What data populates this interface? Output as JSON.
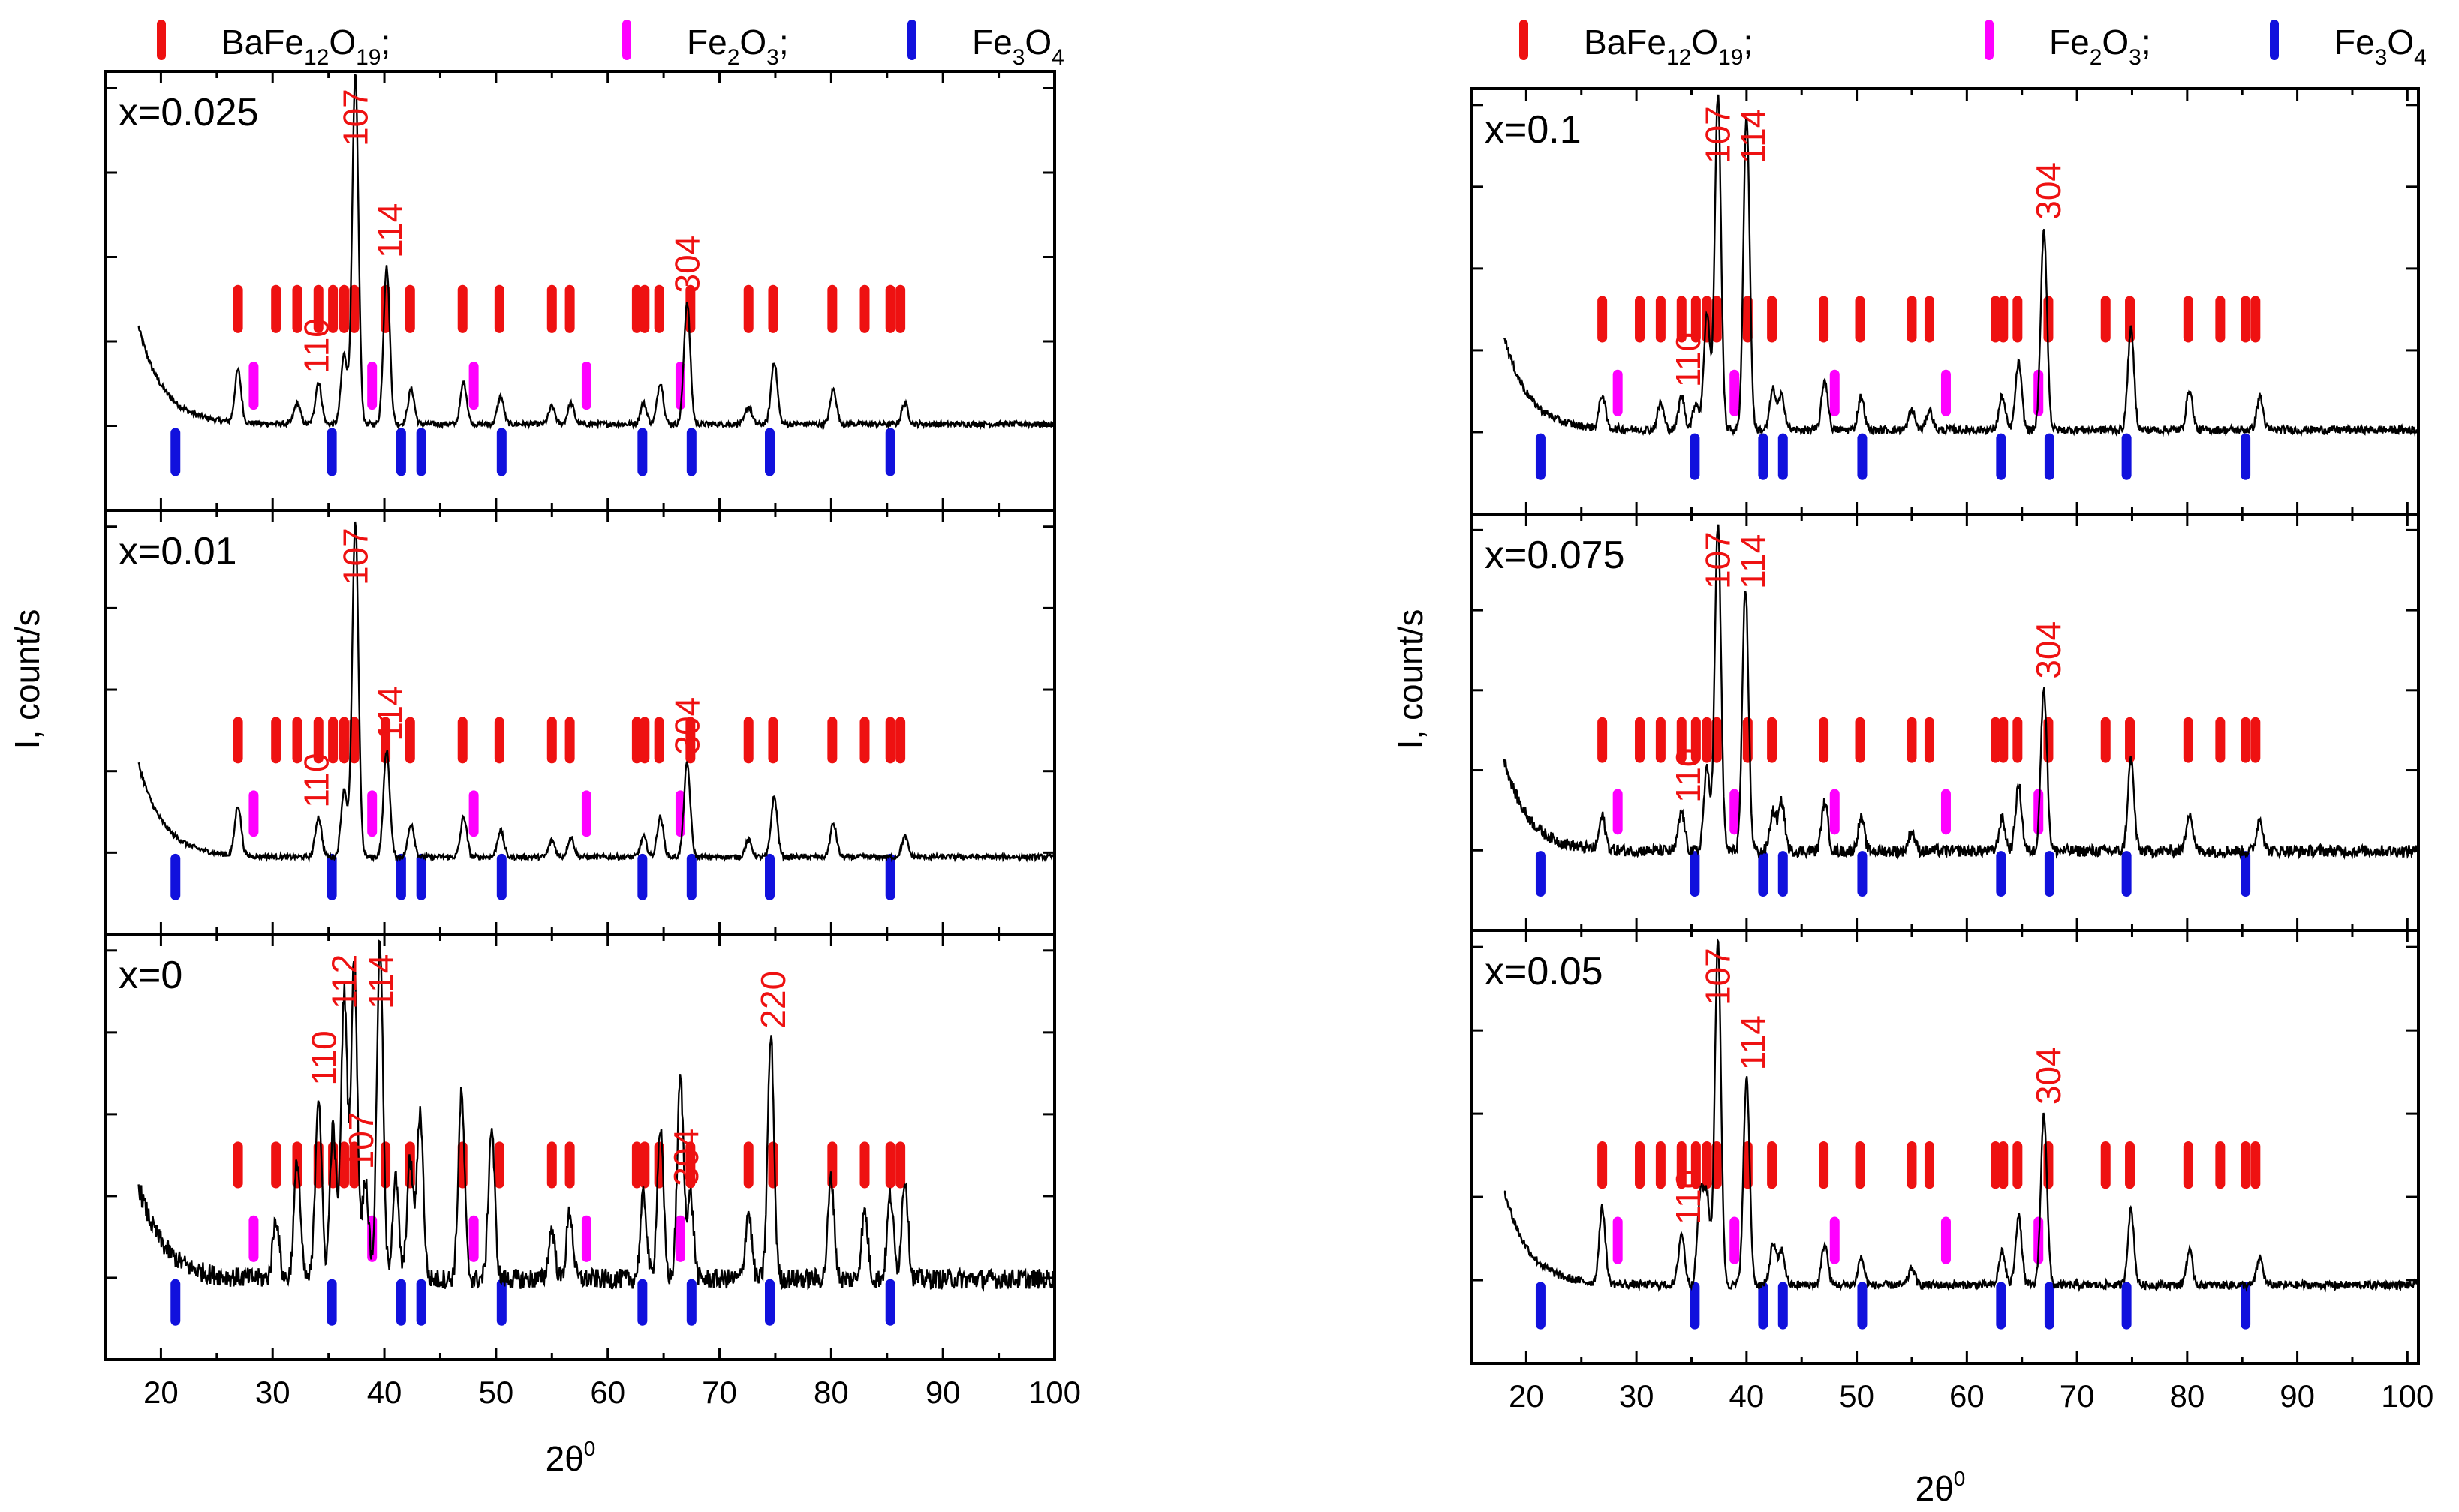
{
  "colors": {
    "bafe": "#ee1111",
    "fe2o3": "#ff00ff",
    "fe3o4": "#1111dd",
    "trace": "#000000",
    "axis": "#000000"
  },
  "legend": [
    {
      "key": "bafe",
      "label_base": "BaFe",
      "sub1": "12",
      "mid": "O",
      "sub2": "19",
      "suffix": ";"
    },
    {
      "key": "fe2o3",
      "label_base": "Fe",
      "sub1": "2",
      "mid": "O",
      "sub2": "3",
      "suffix": ";"
    },
    {
      "key": "fe3o4",
      "label_base": "Fe",
      "sub1": "3",
      "mid": "O",
      "sub2": "4",
      "suffix": ""
    }
  ],
  "axes": {
    "ylabel": "I, count/s",
    "xlabel_base": "2θ",
    "xlabel_sup": "0",
    "xlim": [
      15,
      100
    ],
    "xlim_right": [
      15,
      101
    ],
    "xticks": [
      20,
      30,
      40,
      50,
      60,
      70,
      80,
      90,
      100
    ]
  },
  "chart_data": {
    "type": "line",
    "description": "X-ray diffraction patterns, intensity vs 2θ, with reference line markers",
    "reference_positions": {
      "BaFe12O19": [
        26.9,
        30.3,
        32.2,
        34.1,
        35.4,
        36.4,
        37.3,
        40.1,
        42.3,
        47.0,
        50.3,
        55.0,
        56.6,
        62.6,
        63.3,
        64.6,
        67.4,
        72.6,
        74.8,
        80.1,
        83.0,
        85.3,
        86.2
      ],
      "Fe2O3": [
        28.3,
        38.9,
        48.0,
        58.1,
        66.5
      ],
      "Fe3O4": [
        21.3,
        35.3,
        41.5,
        43.3,
        50.5,
        63.1,
        67.5,
        74.5,
        85.3
      ]
    },
    "panels": [
      {
        "sample": "x=0.025",
        "column": "left",
        "baseline": 0.15,
        "noise": 0.008,
        "peaks": [
          [
            26.9,
            0.15
          ],
          [
            32.2,
            0.06
          ],
          [
            34.1,
            0.12
          ],
          [
            36.4,
            0.2
          ],
          [
            37.4,
            1.0
          ],
          [
            40.2,
            0.45
          ],
          [
            42.4,
            0.1
          ],
          [
            47.1,
            0.12
          ],
          [
            50.4,
            0.08
          ],
          [
            55.0,
            0.05
          ],
          [
            56.7,
            0.06
          ],
          [
            63.2,
            0.06
          ],
          [
            64.7,
            0.12
          ],
          [
            67.1,
            0.35
          ],
          [
            72.6,
            0.05
          ],
          [
            74.9,
            0.18
          ],
          [
            80.2,
            0.1
          ],
          [
            86.6,
            0.06
          ]
        ],
        "miller": [
          {
            "hkl": "110",
            "at": 33.9
          },
          {
            "hkl": "107",
            "at": 37.4
          },
          {
            "hkl": "114",
            "at": 40.5
          },
          {
            "hkl": "304",
            "at": 67.1
          }
        ]
      },
      {
        "sample": "x=0.01",
        "column": "left",
        "baseline": 0.13,
        "noise": 0.008,
        "peaks": [
          [
            26.9,
            0.15
          ],
          [
            34.1,
            0.12
          ],
          [
            36.4,
            0.2
          ],
          [
            37.4,
            1.0
          ],
          [
            40.2,
            0.32
          ],
          [
            42.4,
            0.1
          ],
          [
            47.1,
            0.12
          ],
          [
            50.4,
            0.08
          ],
          [
            55.0,
            0.05
          ],
          [
            56.7,
            0.06
          ],
          [
            63.2,
            0.06
          ],
          [
            64.7,
            0.12
          ],
          [
            67.1,
            0.28
          ],
          [
            72.6,
            0.05
          ],
          [
            74.9,
            0.18
          ],
          [
            80.2,
            0.1
          ],
          [
            86.6,
            0.06
          ]
        ],
        "miller": [
          {
            "hkl": "110",
            "at": 33.9
          },
          {
            "hkl": "107",
            "at": 37.4
          },
          {
            "hkl": "114",
            "at": 40.5
          },
          {
            "hkl": "304",
            "at": 67.1
          }
        ]
      },
      {
        "sample": "x=0",
        "column": "left",
        "baseline": 0.14,
        "noise": 0.03,
        "peaks": [
          [
            30.3,
            0.18
          ],
          [
            32.2,
            0.35
          ],
          [
            34.1,
            0.55
          ],
          [
            35.4,
            0.45
          ],
          [
            36.4,
            0.85
          ],
          [
            37.3,
            0.95
          ],
          [
            38.3,
            0.3
          ],
          [
            39.6,
            1.0
          ],
          [
            41.0,
            0.3
          ],
          [
            42.3,
            0.35
          ],
          [
            43.2,
            0.5
          ],
          [
            46.9,
            0.55
          ],
          [
            49.6,
            0.45
          ],
          [
            55.0,
            0.15
          ],
          [
            56.6,
            0.2
          ],
          [
            63.2,
            0.25
          ],
          [
            64.7,
            0.45
          ],
          [
            66.5,
            0.6
          ],
          [
            67.4,
            0.25
          ],
          [
            72.6,
            0.2
          ],
          [
            74.6,
            0.72
          ],
          [
            80.0,
            0.3
          ],
          [
            83.0,
            0.2
          ],
          [
            85.3,
            0.25
          ],
          [
            86.6,
            0.3
          ]
        ],
        "miller": [
          {
            "hkl": "110",
            "at": 34.6
          },
          {
            "hkl": "112",
            "at": 36.4
          },
          {
            "hkl": "107",
            "at": 37.9
          },
          {
            "hkl": "114",
            "at": 39.7
          },
          {
            "hkl": "304",
            "at": 67.0
          },
          {
            "hkl": "220",
            "at": 74.8
          }
        ]
      },
      {
        "sample": "x=0.1",
        "column": "right",
        "baseline": 0.15,
        "noise": 0.012,
        "peaks": [
          [
            26.9,
            0.1
          ],
          [
            32.2,
            0.08
          ],
          [
            34.1,
            0.1
          ],
          [
            35.4,
            0.08
          ],
          [
            36.4,
            0.35
          ],
          [
            37.4,
            1.0
          ],
          [
            40.0,
            0.94
          ],
          [
            42.4,
            0.12
          ],
          [
            43.2,
            0.1
          ],
          [
            47.1,
            0.15
          ],
          [
            50.4,
            0.1
          ],
          [
            55.0,
            0.06
          ],
          [
            56.6,
            0.06
          ],
          [
            63.2,
            0.1
          ],
          [
            64.7,
            0.2
          ],
          [
            67.0,
            0.6
          ],
          [
            74.9,
            0.3
          ],
          [
            80.2,
            0.12
          ],
          [
            86.6,
            0.1
          ]
        ],
        "miller": [
          {
            "hkl": "110",
            "at": 34.7
          },
          {
            "hkl": "107",
            "at": 37.4
          },
          {
            "hkl": "114",
            "at": 40.6
          },
          {
            "hkl": "304",
            "at": 67.4
          }
        ]
      },
      {
        "sample": "x=0.075",
        "column": "right",
        "baseline": 0.14,
        "noise": 0.018,
        "peaks": [
          [
            26.9,
            0.1
          ],
          [
            34.1,
            0.12
          ],
          [
            36.4,
            0.25
          ],
          [
            37.4,
            1.0
          ],
          [
            39.9,
            0.8
          ],
          [
            42.4,
            0.12
          ],
          [
            43.2,
            0.15
          ],
          [
            47.1,
            0.15
          ],
          [
            50.4,
            0.1
          ],
          [
            55.0,
            0.06
          ],
          [
            63.2,
            0.1
          ],
          [
            64.7,
            0.2
          ],
          [
            67.0,
            0.5
          ],
          [
            74.9,
            0.28
          ],
          [
            80.2,
            0.12
          ],
          [
            86.6,
            0.1
          ]
        ],
        "miller": [
          {
            "hkl": "110",
            "at": 34.7
          },
          {
            "hkl": "107",
            "at": 37.4
          },
          {
            "hkl": "114",
            "at": 40.6
          },
          {
            "hkl": "304",
            "at": 67.4
          }
        ]
      },
      {
        "sample": "x=0.05",
        "column": "right",
        "baseline": 0.13,
        "noise": 0.012,
        "peaks": [
          [
            26.9,
            0.22
          ],
          [
            34.1,
            0.15
          ],
          [
            35.8,
            0.25
          ],
          [
            36.4,
            0.25
          ],
          [
            37.4,
            1.0
          ],
          [
            40.0,
            0.6
          ],
          [
            42.4,
            0.12
          ],
          [
            43.2,
            0.1
          ],
          [
            47.1,
            0.12
          ],
          [
            50.4,
            0.08
          ],
          [
            55.0,
            0.05
          ],
          [
            63.2,
            0.1
          ],
          [
            64.7,
            0.2
          ],
          [
            67.0,
            0.5
          ],
          [
            74.9,
            0.22
          ],
          [
            80.2,
            0.1
          ],
          [
            86.6,
            0.08
          ]
        ],
        "miller": [
          {
            "hkl": "110",
            "at": 34.7
          },
          {
            "hkl": "107",
            "at": 37.4
          },
          {
            "hkl": "114",
            "at": 40.6
          },
          {
            "hkl": "304",
            "at": 67.4
          }
        ]
      }
    ]
  }
}
